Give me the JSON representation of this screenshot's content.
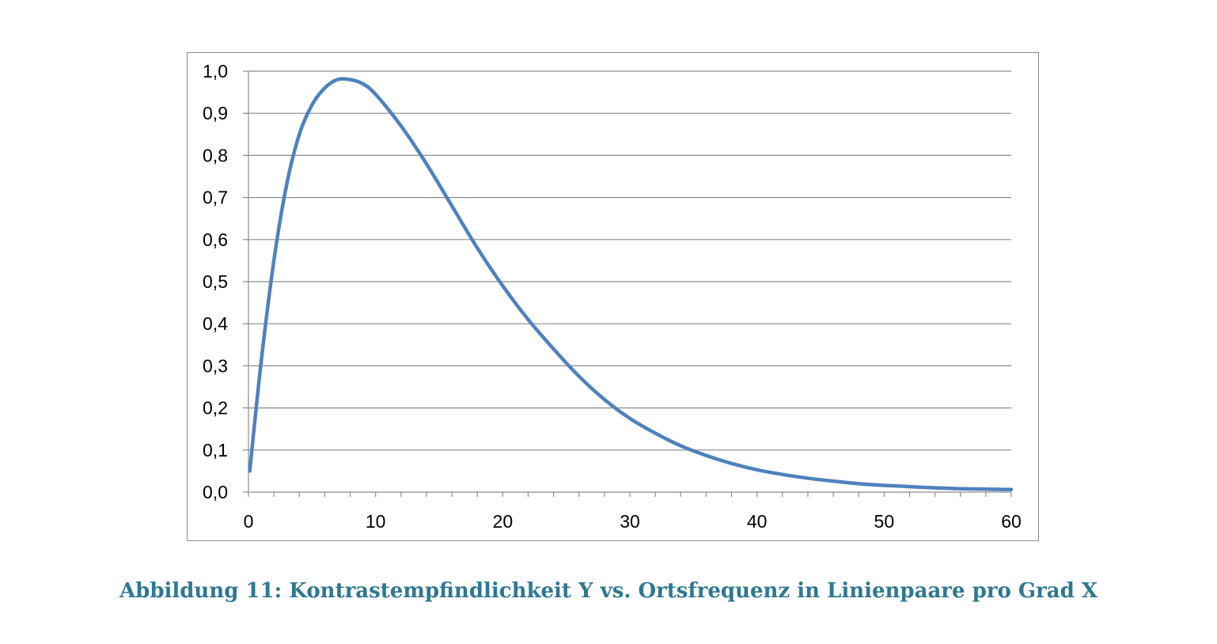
{
  "caption": "Abbildung 11: Kontrastempfindlichkeit Y vs. Ortsfrequenz in Linienpaare pro Grad X",
  "chart_data": {
    "type": "line",
    "title": "",
    "xlabel": "",
    "ylabel": "",
    "xlim": [
      0,
      60
    ],
    "ylim": [
      0.0,
      1.0
    ],
    "grid": "horizontal",
    "x_ticks": [
      0,
      10,
      20,
      30,
      40,
      50,
      60
    ],
    "x_tick_labels": [
      "0",
      "10",
      "20",
      "30",
      "40",
      "50",
      "60"
    ],
    "y_ticks": [
      0.0,
      0.1,
      0.2,
      0.3,
      0.4,
      0.5,
      0.6,
      0.7,
      0.8,
      0.9,
      1.0
    ],
    "y_tick_labels": [
      "0,0",
      "0,1",
      "0,2",
      "0,3",
      "0,4",
      "0,5",
      "0,6",
      "0,7",
      "0,8",
      "0,9",
      "1,0"
    ],
    "series": [
      {
        "color": "#4f81bd",
        "x": [
          0.1,
          1,
          2,
          3,
          4,
          5,
          6,
          7,
          8,
          9,
          10,
          12,
          14,
          16,
          18,
          20,
          22,
          24,
          26,
          28,
          30,
          32,
          34,
          36,
          38,
          40,
          42,
          44,
          46,
          48,
          50,
          52,
          54,
          56,
          58,
          60
        ],
        "y": [
          0.05,
          0.31,
          0.55,
          0.73,
          0.85,
          0.92,
          0.96,
          0.98,
          0.98,
          0.97,
          0.945,
          0.87,
          0.78,
          0.68,
          0.58,
          0.49,
          0.41,
          0.34,
          0.275,
          0.22,
          0.175,
          0.14,
          0.11,
          0.087,
          0.068,
          0.053,
          0.042,
          0.033,
          0.026,
          0.02,
          0.016,
          0.013,
          0.01,
          0.008,
          0.007,
          0.006
        ]
      }
    ]
  }
}
